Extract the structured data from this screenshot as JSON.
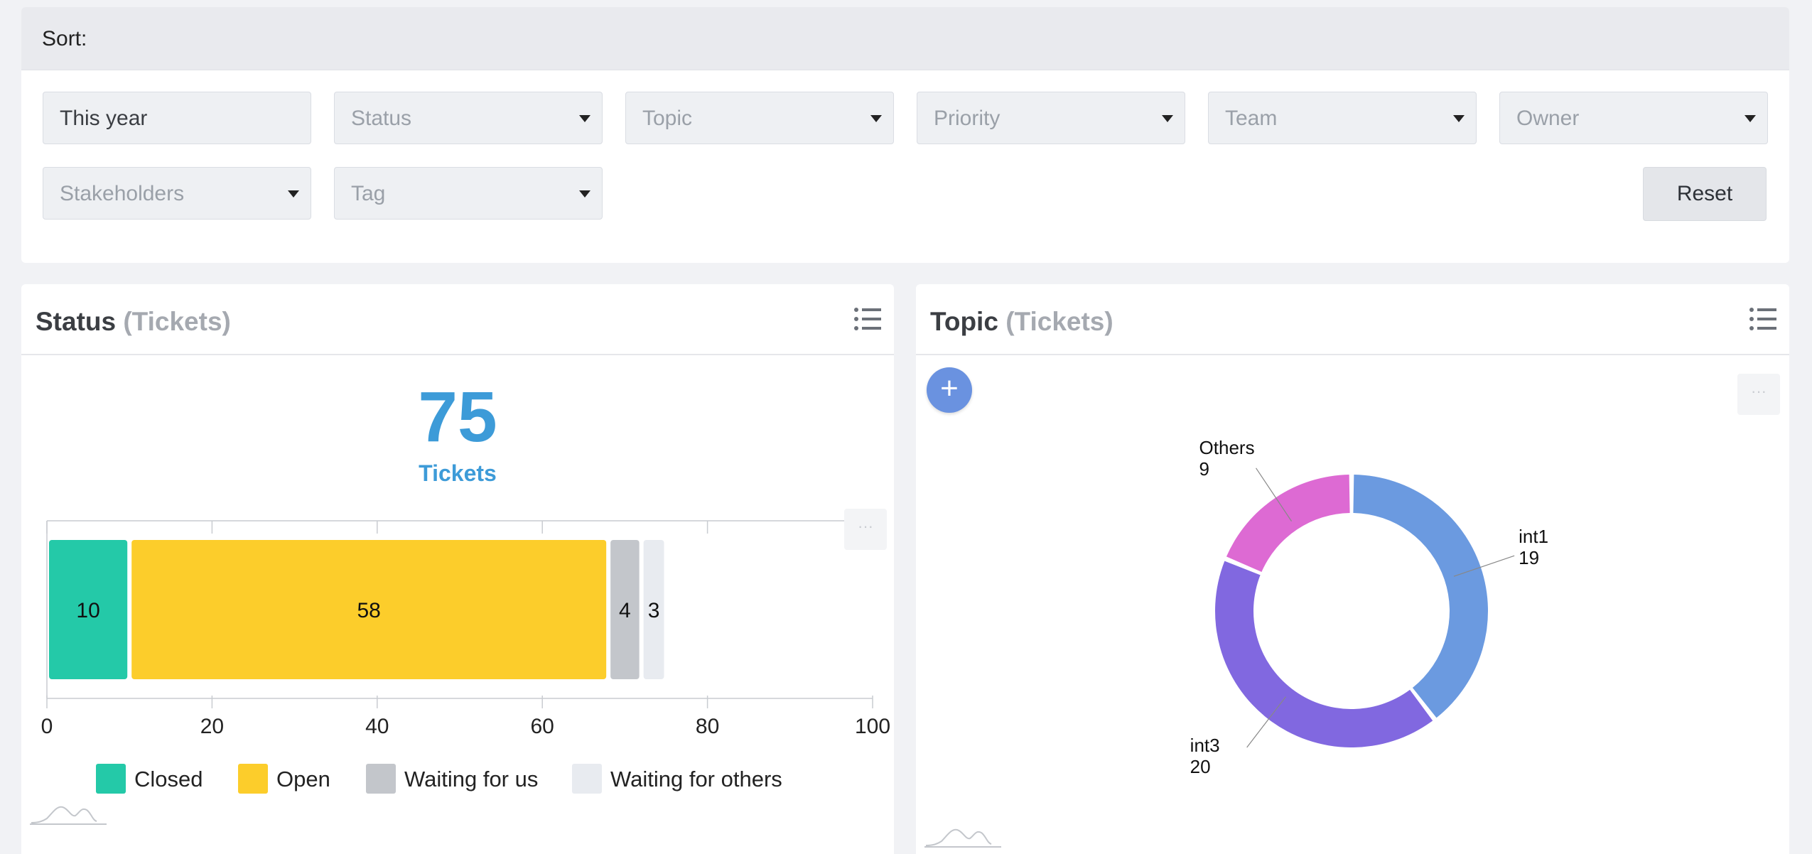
{
  "sort": {
    "label": "Sort:",
    "filters_row1": [
      {
        "text": "This year",
        "is_value": true,
        "dropdown": false
      },
      {
        "text": "Status",
        "is_value": false,
        "dropdown": true
      },
      {
        "text": "Topic",
        "is_value": false,
        "dropdown": true
      },
      {
        "text": "Priority",
        "is_value": false,
        "dropdown": true
      },
      {
        "text": "Team",
        "is_value": false,
        "dropdown": true
      },
      {
        "text": "Owner",
        "is_value": false,
        "dropdown": true
      }
    ],
    "filters_row2": [
      {
        "text": "Stakeholders",
        "is_value": false,
        "dropdown": true
      },
      {
        "text": "Tag",
        "is_value": false,
        "dropdown": true
      }
    ],
    "reset_label": "Reset"
  },
  "status_panel": {
    "title": "Status",
    "subtitle": "(Tickets)",
    "total": "75",
    "total_label": "Tickets",
    "more_label": "···"
  },
  "topic_panel": {
    "title": "Topic",
    "subtitle": "(Tickets)",
    "add_label": "+",
    "more_label": "···"
  },
  "colors": {
    "closed": "#24c9a8",
    "open": "#fccd2b",
    "waiting_us": "#c3c6cb",
    "waiting_others": "#e8ebf0",
    "int1": "#6b9ae0",
    "int3": "#8168e0",
    "others": "#dd6ad3",
    "accent": "#3d9bd8"
  },
  "chart_data": [
    {
      "type": "bar",
      "orientation": "horizontal-stacked",
      "series": [
        {
          "name": "Closed",
          "value": 10,
          "color": "#24c9a8"
        },
        {
          "name": "Open",
          "value": 58,
          "color": "#fccd2b"
        },
        {
          "name": "Waiting for us",
          "value": 4,
          "color": "#c3c6cb"
        },
        {
          "name": "Waiting for others",
          "value": 3,
          "color": "#e8ebf0"
        }
      ],
      "xlim": [
        0,
        100
      ],
      "xticks": [
        0,
        20,
        40,
        60,
        80,
        100
      ],
      "grid": true,
      "legend_position": "bottom"
    },
    {
      "type": "pie",
      "donut": true,
      "slices": [
        {
          "label": "int1",
          "value": 19,
          "color": "#6b9ae0"
        },
        {
          "label": "int3",
          "value": 20,
          "color": "#8168e0"
        },
        {
          "label": "Others",
          "value": 9,
          "color": "#dd6ad3"
        }
      ]
    }
  ]
}
